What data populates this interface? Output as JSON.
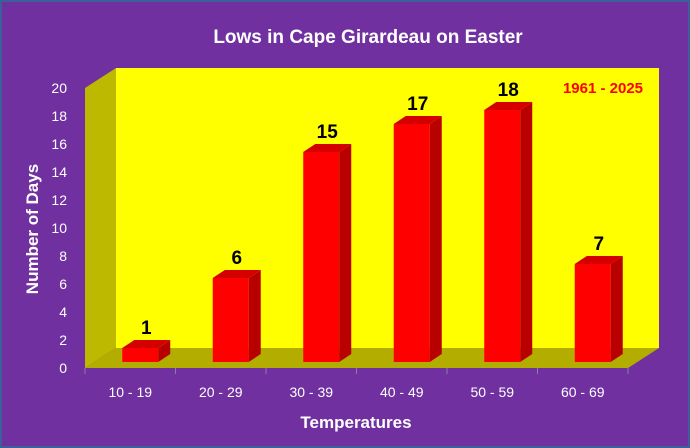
{
  "chart_data": {
    "type": "bar",
    "title": "Lows in Cape Girardeau on Easter",
    "xlabel": "Temperatures",
    "ylabel": "Number of Days",
    "categories": [
      "10 - 19",
      "20 - 29",
      "30 - 39",
      "40 - 49",
      "50 - 59",
      "60 - 69"
    ],
    "values": [
      1,
      6,
      15,
      17,
      18,
      7
    ],
    "ylim": [
      0,
      20
    ],
    "yticks": [
      "0",
      "2",
      "4",
      "6",
      "8",
      "10",
      "12",
      "14",
      "16",
      "18",
      "20"
    ],
    "annotation": "1961 - 2025",
    "grid": false,
    "legend": "none",
    "style": "3d",
    "colors": {
      "background": "#7030a0",
      "plot_area": "#ffff00",
      "floor": "#b3ad00",
      "side_wall": "#bdb800",
      "bar_front": "#ff0000",
      "bar_side": "#b80000",
      "bar_top": "#d40000",
      "annotation": "#ff0000"
    }
  }
}
